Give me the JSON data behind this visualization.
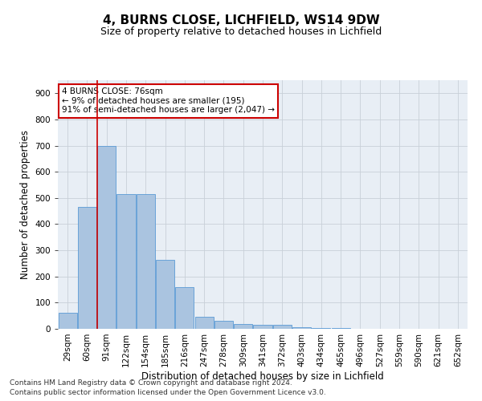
{
  "title1": "4, BURNS CLOSE, LICHFIELD, WS14 9DW",
  "title2": "Size of property relative to detached houses in Lichfield",
  "xlabel": "Distribution of detached houses by size in Lichfield",
  "ylabel": "Number of detached properties",
  "categories": [
    "29sqm",
    "60sqm",
    "91sqm",
    "122sqm",
    "154sqm",
    "185sqm",
    "216sqm",
    "247sqm",
    "278sqm",
    "309sqm",
    "341sqm",
    "372sqm",
    "403sqm",
    "434sqm",
    "465sqm",
    "496sqm",
    "527sqm",
    "559sqm",
    "590sqm",
    "621sqm",
    "652sqm"
  ],
  "values": [
    60,
    465,
    700,
    515,
    515,
    265,
    160,
    45,
    30,
    17,
    15,
    15,
    7,
    3,
    2,
    1,
    1,
    0,
    0,
    0,
    0
  ],
  "bar_color": "#aac4e0",
  "bar_edge_color": "#5b9bd5",
  "annotation_text": "4 BURNS CLOSE: 76sqm\n← 9% of detached houses are smaller (195)\n91% of semi-detached houses are larger (2,047) →",
  "annotation_box_color": "#ffffff",
  "annotation_box_edge": "#cc0000",
  "annotation_text_color": "#000000",
  "red_line_color": "#cc0000",
  "ylim": [
    0,
    950
  ],
  "yticks": [
    0,
    100,
    200,
    300,
    400,
    500,
    600,
    700,
    800,
    900
  ],
  "footnote1": "Contains HM Land Registry data © Crown copyright and database right 2024.",
  "footnote2": "Contains public sector information licensed under the Open Government Licence v3.0.",
  "grid_color": "#c8d0d8",
  "bg_color": "#e8eef5",
  "title1_fontsize": 11,
  "title2_fontsize": 9,
  "xlabel_fontsize": 8.5,
  "ylabel_fontsize": 8.5,
  "tick_fontsize": 7.5,
  "footnote_fontsize": 6.5
}
